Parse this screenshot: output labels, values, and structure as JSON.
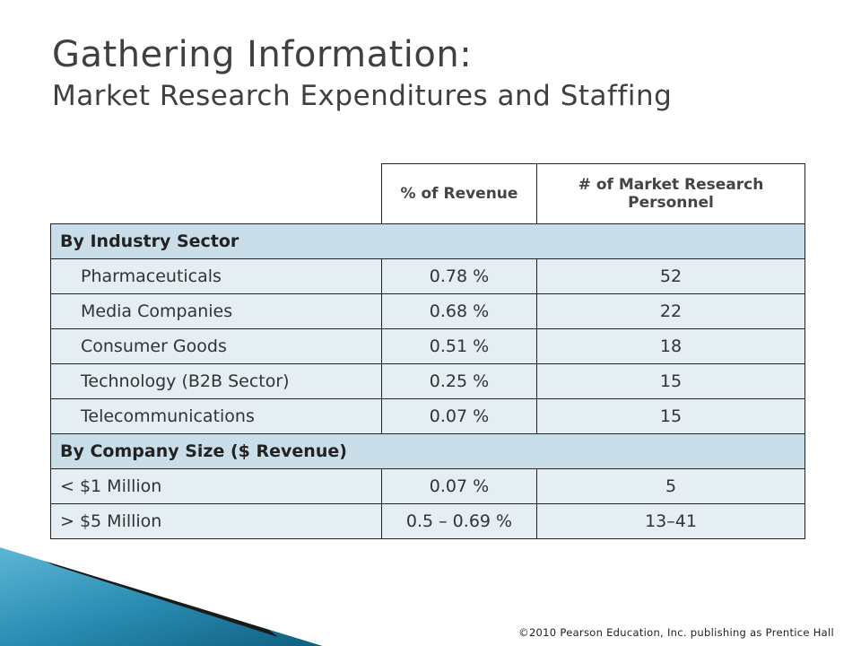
{
  "title": {
    "line1": "Gathering Information:",
    "line2": "Market Research Expenditures and Staffing"
  },
  "table": {
    "headers": [
      "% of Revenue",
      "# of Market Research Personnel"
    ],
    "sections": [
      {
        "label": "By Industry Sector",
        "rows": [
          {
            "name": "Pharmaceuticals",
            "revenue": "0.78 %",
            "personnel": "52"
          },
          {
            "name": "Media Companies",
            "revenue": "0.68 %",
            "personnel": "22"
          },
          {
            "name": "Consumer Goods",
            "revenue": "0.51 %",
            "personnel": "18"
          },
          {
            "name": "Technology (B2B Sector)",
            "revenue": "0.25 %",
            "personnel": "15"
          },
          {
            "name": "Telecommunications",
            "revenue": "0.07 %",
            "personnel": "15"
          }
        ]
      },
      {
        "label": "By Company Size ($ Revenue)",
        "rows": [
          {
            "name": "< $1 Million",
            "revenue": "0.07 %",
            "personnel": "5"
          },
          {
            "name": "> $5 Million",
            "revenue": "0.5 – 0.69 %",
            "personnel": "13–41"
          }
        ]
      }
    ]
  },
  "footer": "©2010 Pearson Education, Inc. publishing as Prentice Hall",
  "colors": {
    "section_fill": "#c9dee8",
    "row_fill": "#e4eef3",
    "accent_teal": "#1f7fa3",
    "accent_light": "#5cb6d6"
  }
}
